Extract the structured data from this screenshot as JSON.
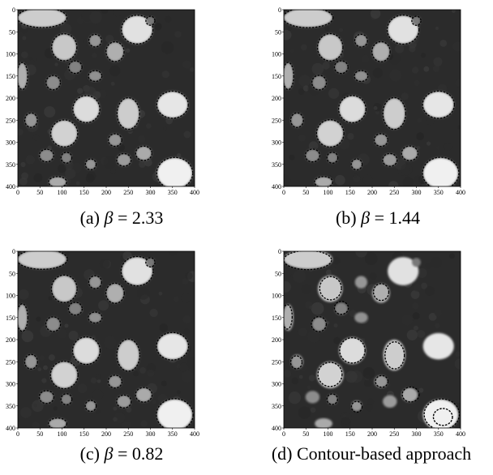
{
  "axes": {
    "x_ticks": [
      "0",
      "50",
      "100",
      "150",
      "200",
      "250",
      "300",
      "350",
      "400"
    ],
    "y_ticks": [
      "0",
      "50",
      "100",
      "150",
      "200",
      "250",
      "300",
      "350",
      "400"
    ]
  },
  "panels": [
    {
      "id": "a",
      "label": "(a)",
      "symbol": "β",
      "equals": "=",
      "value": "2.33",
      "text": ""
    },
    {
      "id": "b",
      "label": "(b)",
      "symbol": "β",
      "equals": "=",
      "value": "1.44",
      "text": ""
    },
    {
      "id": "c",
      "label": "(c)",
      "symbol": "β",
      "equals": "=",
      "value": "0.82",
      "text": ""
    },
    {
      "id": "d",
      "label": "(d)",
      "symbol": "",
      "equals": "",
      "value": "",
      "text": "Contour-based approach"
    }
  ]
}
